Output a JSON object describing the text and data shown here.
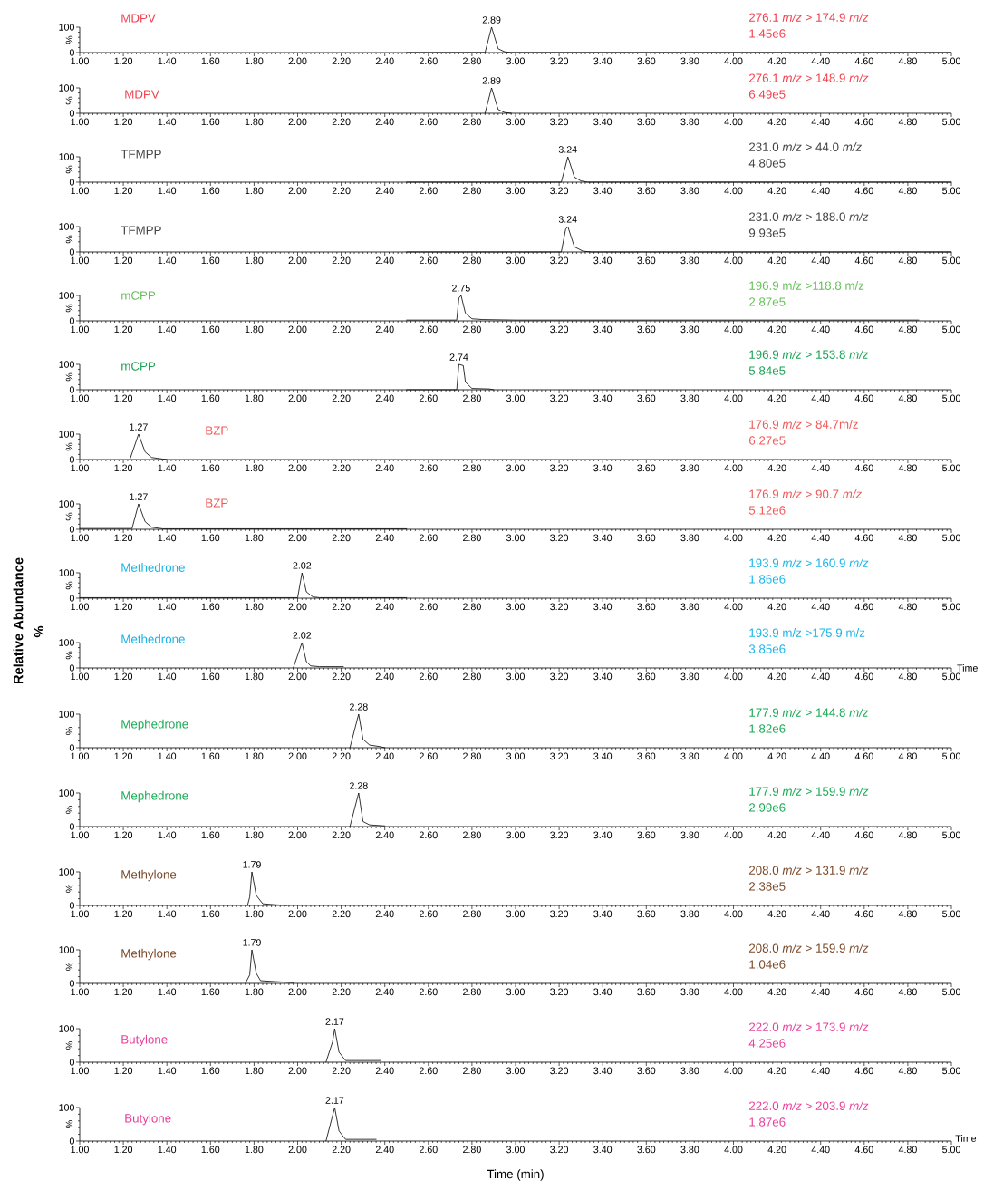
{
  "chart_data": [
    {
      "type": "line",
      "ylabel": "%",
      "xlim": [
        1,
        5
      ],
      "ylim": [
        0,
        100
      ],
      "xticks": [
        {
          "value": 1.0,
          "label": "1.00"
        },
        {
          "value": 1.2,
          "label": "1.20"
        },
        {
          "value": 1.4,
          "label": "1.40"
        },
        {
          "value": 1.6,
          "label": "1.60"
        },
        {
          "value": 1.8,
          "label": "1.80"
        },
        {
          "value": 2.0,
          "label": "2.00"
        },
        {
          "value": 2.2,
          "label": "2.20"
        },
        {
          "value": 2.4,
          "label": "2.40"
        },
        {
          "value": 2.6,
          "label": "2.60"
        },
        {
          "value": 2.8,
          "label": "2.80"
        },
        {
          "value": 3.0,
          "label": "3.00"
        },
        {
          "value": 3.2,
          "label": "3.20"
        },
        {
          "value": 3.4,
          "label": "3.40"
        },
        {
          "value": 3.6,
          "label": "3.60"
        },
        {
          "value": 3.8,
          "label": "3.80"
        },
        {
          "value": 4.0,
          "label": "4.00"
        },
        {
          "value": 4.2,
          "label": "4.20"
        },
        {
          "value": 4.4,
          "label": "4.40"
        },
        {
          "value": 4.6,
          "label": "4.60"
        },
        {
          "value": 4.8,
          "label": "4.80"
        },
        {
          "value": 5.0,
          "label": "5.00"
        }
      ],
      "yticks": [
        0,
        100
      ],
      "series": [
        {
          "color": "#000000",
          "x": [
            2.5,
            2.86,
            2.89,
            2.92,
            2.95,
            2.98,
            5.0
          ],
          "values": [
            0,
            0,
            100,
            15,
            3,
            0,
            0
          ]
        }
      ],
      "annotations": [
        "MDPV",
        "276.1 *m/z* > 174.9 *m/z*",
        "1.45e6",
        {
          "text": "2.89",
          "x": 2.89,
          "y": 100
        }
      ]
    },
    {
      "type": "line",
      "ylabel": "%",
      "xlim": [
        1,
        5
      ],
      "ylim": [
        0,
        100
      ],
      "xticks": [
        {
          "value": 1.0,
          "label": "1.00"
        },
        {
          "value": 1.2,
          "label": "1.20"
        },
        {
          "value": 1.4,
          "label": "1.40"
        },
        {
          "value": 1.6,
          "label": "1.60"
        },
        {
          "value": 1.8,
          "label": "1.80"
        },
        {
          "value": 2.0,
          "label": "2.00"
        },
        {
          "value": 2.2,
          "label": "2.20"
        },
        {
          "value": 2.4,
          "label": "2.40"
        },
        {
          "value": 2.6,
          "label": "2.60"
        },
        {
          "value": 2.8,
          "label": "2.80"
        },
        {
          "value": 3.0,
          "label": "3.00"
        },
        {
          "value": 3.2,
          "label": "3.20"
        },
        {
          "value": 3.4,
          "label": "3.40"
        },
        {
          "value": 3.6,
          "label": "3.60"
        },
        {
          "value": 3.8,
          "label": "3.80"
        },
        {
          "value": 4.0,
          "label": "4.00"
        },
        {
          "value": 4.2,
          "label": "4.20"
        },
        {
          "value": 4.4,
          "label": "4.40"
        },
        {
          "value": 4.6,
          "label": "4.60"
        },
        {
          "value": 4.8,
          "label": "4.80"
        },
        {
          "value": 5.0,
          "label": "5.00"
        }
      ],
      "yticks": [
        0,
        100
      ],
      "series": [
        {
          "color": "#000000",
          "x": [
            2.86,
            2.89,
            2.92,
            2.95,
            2.98
          ],
          "values": [
            0,
            100,
            15,
            3,
            0
          ]
        }
      ],
      "annotations": [
        "MDPV",
        "276.1 *m/z* > 148.9 *m/z*",
        "6.49e5",
        {
          "text": "2.89",
          "x": 2.89,
          "y": 100
        }
      ]
    },
    {
      "type": "line",
      "ylabel": "%",
      "xlim": [
        1,
        5
      ],
      "ylim": [
        0,
        100
      ],
      "xticks": [
        {
          "value": 1.0,
          "label": "1.00"
        },
        {
          "value": 1.2,
          "label": "1.20"
        },
        {
          "value": 1.4,
          "label": "1.40"
        },
        {
          "value": 1.6,
          "label": "1.60"
        },
        {
          "value": 1.8,
          "label": "1.80"
        },
        {
          "value": 2.0,
          "label": "2.00"
        },
        {
          "value": 2.2,
          "label": "2.20"
        },
        {
          "value": 2.4,
          "label": "2.40"
        },
        {
          "value": 2.6,
          "label": "2.60"
        },
        {
          "value": 2.8,
          "label": "2.80"
        },
        {
          "value": 3.0,
          "label": "3.00"
        },
        {
          "value": 3.2,
          "label": "3.20"
        },
        {
          "value": 3.4,
          "label": "3.40"
        },
        {
          "value": 3.6,
          "label": "3.60"
        },
        {
          "value": 3.8,
          "label": "3.80"
        },
        {
          "value": 4.0,
          "label": "4.00"
        },
        {
          "value": 4.2,
          "label": "4.20"
        },
        {
          "value": 4.4,
          "label": "4.40"
        },
        {
          "value": 4.6,
          "label": "4.60"
        },
        {
          "value": 4.8,
          "label": "4.80"
        },
        {
          "value": 5.0,
          "label": "5.00"
        }
      ],
      "yticks": [
        0,
        100
      ],
      "series": [
        {
          "color": "#000000",
          "x": [
            2.5,
            3.21,
            3.24,
            3.27,
            3.3,
            3.33,
            5.0
          ],
          "values": [
            0,
            0,
            100,
            20,
            5,
            0,
            0
          ]
        }
      ],
      "annotations": [
        "TFMPP",
        "231.0 *m/z* > 44.0 *m/z*",
        "4.80e5",
        {
          "text": "3.24",
          "x": 3.24,
          "y": 100
        }
      ]
    },
    {
      "type": "line",
      "ylabel": "%",
      "xlim": [
        1,
        5
      ],
      "ylim": [
        0,
        100
      ],
      "xticks": [
        {
          "value": 1.0,
          "label": "1.00"
        },
        {
          "value": 1.2,
          "label": "1.20"
        },
        {
          "value": 1.4,
          "label": "1.40"
        },
        {
          "value": 1.6,
          "label": "1.60"
        },
        {
          "value": 1.8,
          "label": "1.80"
        },
        {
          "value": 2.0,
          "label": "2.00"
        },
        {
          "value": 2.2,
          "label": "2.20"
        },
        {
          "value": 2.4,
          "label": "2.40"
        },
        {
          "value": 2.6,
          "label": "2.60"
        },
        {
          "value": 2.8,
          "label": "2.80"
        },
        {
          "value": 3.0,
          "label": "3.00"
        },
        {
          "value": 3.2,
          "label": "3.20"
        },
        {
          "value": 3.4,
          "label": "3.40"
        },
        {
          "value": 3.6,
          "label": "3.60"
        },
        {
          "value": 3.8,
          "label": "3.80"
        },
        {
          "value": 4.0,
          "label": "4.00"
        },
        {
          "value": 4.2,
          "label": "4.20"
        },
        {
          "value": 4.4,
          "label": "4.40"
        },
        {
          "value": 4.6,
          "label": "4.60"
        },
        {
          "value": 4.8,
          "label": "4.80"
        },
        {
          "value": 5.0,
          "label": "5.00"
        }
      ],
      "yticks": [
        0,
        100
      ],
      "series": [
        {
          "color": "#000000",
          "x": [
            2.5,
            3.21,
            3.23,
            3.24,
            3.27,
            3.31,
            3.35,
            5.0
          ],
          "values": [
            0,
            0,
            90,
            100,
            20,
            3,
            0,
            0
          ]
        }
      ],
      "annotations": [
        "TFMPP",
        "231.0 *m/z* > 188.0 *m/z*",
        "9.93e5",
        {
          "text": "3.24",
          "x": 3.24,
          "y": 100
        }
      ]
    },
    {
      "type": "line",
      "ylabel": "%",
      "xlim": [
        1,
        5
      ],
      "ylim": [
        0,
        100
      ],
      "xticks": [
        {
          "value": 1.0,
          "label": "1.00"
        },
        {
          "value": 1.2,
          "label": "1.20"
        },
        {
          "value": 1.4,
          "label": "1.40"
        },
        {
          "value": 1.6,
          "label": "1.60"
        },
        {
          "value": 1.8,
          "label": "1.80"
        },
        {
          "value": 2.0,
          "label": "2.00"
        },
        {
          "value": 2.2,
          "label": "2.20"
        },
        {
          "value": 2.4,
          "label": "2.40"
        },
        {
          "value": 2.6,
          "label": "2.60"
        },
        {
          "value": 2.8,
          "label": "2.80"
        },
        {
          "value": 3.0,
          "label": "3.00"
        },
        {
          "value": 3.2,
          "label": "3.20"
        },
        {
          "value": 3.4,
          "label": "3.40"
        },
        {
          "value": 3.6,
          "label": "3.60"
        },
        {
          "value": 3.8,
          "label": "3.80"
        },
        {
          "value": 4.0,
          "label": "4.00"
        },
        {
          "value": 4.2,
          "label": "4.20"
        },
        {
          "value": 4.4,
          "label": "4.40"
        },
        {
          "value": 4.6,
          "label": "4.60"
        },
        {
          "value": 4.8,
          "label": "4.80"
        },
        {
          "value": 5.0,
          "label": "5.00"
        }
      ],
      "yticks": [
        0,
        100
      ],
      "series": [
        {
          "color": "#000000",
          "x": [
            2.5,
            2.73,
            2.74,
            2.75,
            2.77,
            2.8,
            2.85,
            3.0,
            4.85
          ],
          "values": [
            3,
            3,
            90,
            100,
            30,
            8,
            5,
            3,
            3
          ]
        }
      ],
      "annotations": [
        "mCPP",
        "196.9 m/z >118.8 m/z",
        "2.87e5",
        {
          "text": "2.75",
          "x": 2.75,
          "y": 100
        }
      ]
    },
    {
      "type": "line",
      "ylabel": "%",
      "xlim": [
        1,
        5
      ],
      "ylim": [
        0,
        100
      ],
      "xticks": [
        {
          "value": 1.0,
          "label": "1.00"
        },
        {
          "value": 1.2,
          "label": "1.20"
        },
        {
          "value": 1.4,
          "label": "1.40"
        },
        {
          "value": 1.6,
          "label": "1.60"
        },
        {
          "value": 1.8,
          "label": "1.80"
        },
        {
          "value": 2.0,
          "label": "2.00"
        },
        {
          "value": 2.2,
          "label": "2.20"
        },
        {
          "value": 2.4,
          "label": "2.40"
        },
        {
          "value": 2.6,
          "label": "2.60"
        },
        {
          "value": 2.8,
          "label": "2.80"
        },
        {
          "value": 3.0,
          "label": "3.00"
        },
        {
          "value": 3.2,
          "label": "3.20"
        },
        {
          "value": 3.4,
          "label": "3.40"
        },
        {
          "value": 3.6,
          "label": "3.60"
        },
        {
          "value": 3.8,
          "label": "3.80"
        },
        {
          "value": 4.0,
          "label": "4.00"
        },
        {
          "value": 4.2,
          "label": "4.20"
        },
        {
          "value": 4.4,
          "label": "4.40"
        },
        {
          "value": 4.6,
          "label": "4.60"
        },
        {
          "value": 4.8,
          "label": "4.80"
        },
        {
          "value": 5.0,
          "label": "5.00"
        }
      ],
      "yticks": [
        0,
        100
      ],
      "series": [
        {
          "color": "#000000",
          "x": [
            2.5,
            2.73,
            2.74,
            2.76,
            2.77,
            2.8,
            2.88,
            2.9
          ],
          "values": [
            0,
            0,
            100,
            95,
            30,
            5,
            3,
            0
          ]
        }
      ],
      "annotations": [
        "mCPP",
        "196.9 *m/z* > 153.8 *m/z*",
        "5.84e5",
        {
          "text": "2.74",
          "x": 2.74,
          "y": 100
        }
      ]
    },
    {
      "type": "line",
      "ylabel": "%",
      "xlim": [
        1,
        5
      ],
      "ylim": [
        0,
        100
      ],
      "xticks": [
        {
          "value": 1.0,
          "label": "1.00"
        },
        {
          "value": 1.2,
          "label": "1.20"
        },
        {
          "value": 1.4,
          "label": "1.40"
        },
        {
          "value": 1.6,
          "label": "1.60"
        },
        {
          "value": 1.8,
          "label": "1.80"
        },
        {
          "value": 2.0,
          "label": "2.00"
        },
        {
          "value": 2.2,
          "label": "2.20"
        },
        {
          "value": 2.4,
          "label": "2.40"
        },
        {
          "value": 2.6,
          "label": "2.60"
        },
        {
          "value": 2.8,
          "label": "2.80"
        },
        {
          "value": 3.0,
          "label": "3.00"
        },
        {
          "value": 3.2,
          "label": "3.20"
        },
        {
          "value": 3.4,
          "label": "3.40"
        },
        {
          "value": 3.6,
          "label": "3.60"
        },
        {
          "value": 3.8,
          "label": "3.80"
        },
        {
          "value": 4.0,
          "label": "4.00"
        },
        {
          "value": 4.2,
          "label": "4.20"
        },
        {
          "value": 4.4,
          "label": "4.40"
        },
        {
          "value": 4.6,
          "label": "4.60"
        },
        {
          "value": 4.8,
          "label": "4.80"
        },
        {
          "value": 5.0,
          "label": "5.00"
        }
      ],
      "yticks": [
        0,
        100
      ],
      "series": [
        {
          "color": "#000000",
          "x": [
            1.23,
            1.27,
            1.3,
            1.33,
            1.38,
            1.4
          ],
          "values": [
            0,
            100,
            30,
            8,
            2,
            0
          ]
        }
      ],
      "annotations": [
        "BZP",
        "176.9 *m/z* > 84.7m/z",
        "6.27e5",
        {
          "text": "1.27",
          "x": 1.27,
          "y": 100
        }
      ]
    },
    {
      "type": "line",
      "ylabel": "%",
      "xlim": [
        1,
        5
      ],
      "ylim": [
        0,
        100
      ],
      "xticks": [
        {
          "value": 1.0,
          "label": "1.00"
        },
        {
          "value": 1.2,
          "label": "1.20"
        },
        {
          "value": 1.4,
          "label": "1.40"
        },
        {
          "value": 1.6,
          "label": "1.60"
        },
        {
          "value": 1.8,
          "label": "1.80"
        },
        {
          "value": 2.0,
          "label": "2.00"
        },
        {
          "value": 2.2,
          "label": "2.20"
        },
        {
          "value": 2.4,
          "label": "2.40"
        },
        {
          "value": 2.6,
          "label": "2.60"
        },
        {
          "value": 2.8,
          "label": "2.80"
        },
        {
          "value": 3.0,
          "label": "3.00"
        },
        {
          "value": 3.2,
          "label": "3.20"
        },
        {
          "value": 3.4,
          "label": "3.40"
        },
        {
          "value": 3.6,
          "label": "3.60"
        },
        {
          "value": 3.8,
          "label": "3.80"
        },
        {
          "value": 4.0,
          "label": "4.00"
        },
        {
          "value": 4.2,
          "label": "4.20"
        },
        {
          "value": 4.4,
          "label": "4.40"
        },
        {
          "value": 4.6,
          "label": "4.60"
        },
        {
          "value": 4.8,
          "label": "4.80"
        },
        {
          "value": 5.0,
          "label": "5.00"
        }
      ],
      "yticks": [
        0,
        100
      ],
      "series": [
        {
          "color": "#000000",
          "x": [
            1.0,
            1.24,
            1.27,
            1.3,
            1.33,
            1.38,
            2.5
          ],
          "values": [
            3,
            3,
            100,
            30,
            8,
            2,
            2
          ]
        }
      ],
      "annotations": [
        "BZP",
        "176.9 *m/z* > 90.7 *m/z*",
        "5.12e6",
        {
          "text": "1.27",
          "x": 1.27,
          "y": 100
        }
      ]
    },
    {
      "type": "line",
      "ylabel": "%",
      "xlim": [
        1,
        5
      ],
      "ylim": [
        0,
        100
      ],
      "xticks": [
        {
          "value": 1.0,
          "label": "1.00"
        },
        {
          "value": 1.2,
          "label": "1.20"
        },
        {
          "value": 1.4,
          "label": "1.40"
        },
        {
          "value": 1.6,
          "label": "1.60"
        },
        {
          "value": 1.8,
          "label": "1.80"
        },
        {
          "value": 2.0,
          "label": "2.00"
        },
        {
          "value": 2.2,
          "label": "2.20"
        },
        {
          "value": 2.4,
          "label": "2.40"
        },
        {
          "value": 2.6,
          "label": "2.60"
        },
        {
          "value": 2.8,
          "label": "2.80"
        },
        {
          "value": 3.0,
          "label": "3.00"
        },
        {
          "value": 3.2,
          "label": "3.20"
        },
        {
          "value": 3.4,
          "label": "3.40"
        },
        {
          "value": 3.6,
          "label": "3.60"
        },
        {
          "value": 3.8,
          "label": "3.80"
        },
        {
          "value": 4.0,
          "label": "4.00"
        },
        {
          "value": 4.2,
          "label": "4.20"
        },
        {
          "value": 4.4,
          "label": "4.40"
        },
        {
          "value": 4.6,
          "label": "4.60"
        },
        {
          "value": 4.8,
          "label": "4.80"
        },
        {
          "value": 5.0,
          "label": "5.00"
        }
      ],
      "yticks": [
        0,
        100
      ],
      "series": [
        {
          "color": "#000000",
          "x": [
            1.0,
            2.0,
            2.02,
            2.04,
            2.07,
            2.1,
            2.5
          ],
          "values": [
            2,
            2,
            100,
            25,
            5,
            2,
            2
          ]
        }
      ],
      "annotations": [
        "Methedrone",
        "193.9 *m/z* > 160.9 *m/z*",
        "1.86e6",
        {
          "text": "2.02",
          "x": 2.02,
          "y": 100
        },
        "Relative Abundance",
        "%"
      ]
    },
    {
      "type": "line",
      "ylabel": "%",
      "xlabel": "Time",
      "xlim": [
        1,
        5
      ],
      "ylim": [
        0,
        100
      ],
      "xticks": [
        {
          "value": 1.0,
          "label": "1.00"
        },
        {
          "value": 1.2,
          "label": "1.20"
        },
        {
          "value": 1.4,
          "label": "1.40"
        },
        {
          "value": 1.6,
          "label": "1.60"
        },
        {
          "value": 1.8,
          "label": "1.80"
        },
        {
          "value": 2.0,
          "label": "2.00"
        },
        {
          "value": 2.2,
          "label": "2.20"
        },
        {
          "value": 2.4,
          "label": "2.40"
        },
        {
          "value": 2.6,
          "label": "2.60"
        },
        {
          "value": 2.8,
          "label": "2.80"
        },
        {
          "value": 3.0,
          "label": "3.00"
        },
        {
          "value": 3.2,
          "label": "3.20"
        },
        {
          "value": 3.4,
          "label": "3.40"
        },
        {
          "value": 3.6,
          "label": "3.60"
        },
        {
          "value": 3.8,
          "label": "3.80"
        },
        {
          "value": 4.0,
          "label": "4.00"
        },
        {
          "value": 4.2,
          "label": "4.20"
        },
        {
          "value": 4.4,
          "label": "4.40"
        },
        {
          "value": 4.6,
          "label": "4.60"
        },
        {
          "value": 4.8,
          "label": "4.80"
        },
        {
          "value": 5.0,
          "label": "5.00"
        }
      ],
      "yticks": [
        0,
        100
      ],
      "series": [
        {
          "color": "#000000",
          "x": [
            1.98,
            2.02,
            2.04,
            2.06,
            2.1,
            2.21
          ],
          "values": [
            0,
            100,
            25,
            8,
            5,
            5
          ]
        }
      ],
      "annotations": [
        "Methedrone",
        "193.9 m/z >175.9 m/z",
        "3.85e6",
        {
          "text": "2.02",
          "x": 2.02,
          "y": 100
        }
      ]
    },
    {
      "type": "line",
      "ylabel": "%",
      "xlim": [
        1,
        5
      ],
      "ylim": [
        0,
        100
      ],
      "xticks": [
        {
          "value": 1.0,
          "label": "1.00"
        },
        {
          "value": 1.2,
          "label": "1.20"
        },
        {
          "value": 1.4,
          "label": "1.40"
        },
        {
          "value": 1.6,
          "label": "1.60"
        },
        {
          "value": 1.8,
          "label": "1.80"
        },
        {
          "value": 2.0,
          "label": "2.00"
        },
        {
          "value": 2.2,
          "label": "2.20"
        },
        {
          "value": 2.4,
          "label": "2.40"
        },
        {
          "value": 2.6,
          "label": "2.60"
        },
        {
          "value": 2.8,
          "label": "2.80"
        },
        {
          "value": 3.0,
          "label": "3.00"
        },
        {
          "value": 3.2,
          "label": "3.20"
        },
        {
          "value": 3.4,
          "label": "3.40"
        },
        {
          "value": 3.6,
          "label": "3.60"
        },
        {
          "value": 3.8,
          "label": "3.80"
        },
        {
          "value": 4.0,
          "label": "4.00"
        },
        {
          "value": 4.2,
          "label": "4.20"
        },
        {
          "value": 4.4,
          "label": "4.40"
        },
        {
          "value": 4.6,
          "label": "4.60"
        },
        {
          "value": 4.8,
          "label": "4.80"
        },
        {
          "value": 5.0,
          "label": "5.00"
        }
      ],
      "yticks": [
        0,
        100
      ],
      "series": [
        {
          "color": "#000000",
          "x": [
            2.24,
            2.28,
            2.3,
            2.33,
            2.38,
            2.4
          ],
          "values": [
            0,
            100,
            25,
            8,
            3,
            0
          ]
        }
      ],
      "annotations": [
        "Mephedrone",
        "177.9 *m/z* > 144.8 *m/z*",
        "1.82e6",
        {
          "text": "2.28",
          "x": 2.28,
          "y": 100
        }
      ]
    },
    {
      "type": "line",
      "ylabel": "%",
      "xlim": [
        1,
        5
      ],
      "ylim": [
        0,
        100
      ],
      "xticks": [
        {
          "value": 1.0,
          "label": "1.00"
        },
        {
          "value": 1.2,
          "label": "1.20"
        },
        {
          "value": 1.4,
          "label": "1.40"
        },
        {
          "value": 1.6,
          "label": "1.60"
        },
        {
          "value": 1.8,
          "label": "1.80"
        },
        {
          "value": 2.0,
          "label": "2.00"
        },
        {
          "value": 2.2,
          "label": "2.20"
        },
        {
          "value": 2.4,
          "label": "2.40"
        },
        {
          "value": 2.6,
          "label": "2.60"
        },
        {
          "value": 2.8,
          "label": "2.80"
        },
        {
          "value": 3.0,
          "label": "3.00"
        },
        {
          "value": 3.2,
          "label": "3.20"
        },
        {
          "value": 3.4,
          "label": "3.40"
        },
        {
          "value": 3.6,
          "label": "3.60"
        },
        {
          "value": 3.8,
          "label": "3.80"
        },
        {
          "value": 4.0,
          "label": "4.00"
        },
        {
          "value": 4.2,
          "label": "4.20"
        },
        {
          "value": 4.4,
          "label": "4.40"
        },
        {
          "value": 4.6,
          "label": "4.60"
        },
        {
          "value": 4.8,
          "label": "4.80"
        },
        {
          "value": 5.0,
          "label": "5.00"
        }
      ],
      "yticks": [
        0,
        100
      ],
      "series": [
        {
          "color": "#000000",
          "x": [
            2.24,
            2.28,
            2.3,
            2.33,
            2.4
          ],
          "values": [
            0,
            100,
            15,
            5,
            2
          ]
        }
      ],
      "annotations": [
        "Mephedrone",
        "177.9 *m/z* > 159.9 *m/z*",
        "2.99e6",
        {
          "text": "2.28",
          "x": 2.28,
          "y": 100
        }
      ]
    },
    {
      "type": "line",
      "ylabel": "%",
      "xlim": [
        1,
        5
      ],
      "ylim": [
        0,
        100
      ],
      "xticks": [
        {
          "value": 1.0,
          "label": "1.00"
        },
        {
          "value": 1.2,
          "label": "1.20"
        },
        {
          "value": 1.4,
          "label": "1.40"
        },
        {
          "value": 1.6,
          "label": "1.60"
        },
        {
          "value": 1.8,
          "label": "1.80"
        },
        {
          "value": 2.0,
          "label": "2.00"
        },
        {
          "value": 2.2,
          "label": "2.20"
        },
        {
          "value": 2.4,
          "label": "2.40"
        },
        {
          "value": 2.6,
          "label": "2.60"
        },
        {
          "value": 2.8,
          "label": "2.80"
        },
        {
          "value": 3.0,
          "label": "3.00"
        },
        {
          "value": 3.2,
          "label": "3.20"
        },
        {
          "value": 3.4,
          "label": "3.40"
        },
        {
          "value": 3.6,
          "label": "3.60"
        },
        {
          "value": 3.8,
          "label": "3.80"
        },
        {
          "value": 4.0,
          "label": "4.00"
        },
        {
          "value": 4.2,
          "label": "4.20"
        },
        {
          "value": 4.4,
          "label": "4.40"
        },
        {
          "value": 4.6,
          "label": "4.60"
        },
        {
          "value": 4.8,
          "label": "4.80"
        },
        {
          "value": 5.0,
          "label": "5.00"
        }
      ],
      "yticks": [
        0,
        100
      ],
      "series": [
        {
          "color": "#000000",
          "x": [
            1.77,
            1.78,
            1.79,
            1.81,
            1.84,
            1.9,
            1.95
          ],
          "values": [
            0,
            25,
            100,
            30,
            5,
            2,
            0
          ]
        }
      ],
      "annotations": [
        "Methylone",
        "208.0 *m/z* > 131.9 *m/z*",
        "2.38e5",
        {
          "text": "1.79",
          "x": 1.79,
          "y": 100
        }
      ]
    },
    {
      "type": "line",
      "ylabel": "%",
      "xlim": [
        1,
        5
      ],
      "ylim": [
        0,
        100
      ],
      "xticks": [
        {
          "value": 1.0,
          "label": "1.00"
        },
        {
          "value": 1.2,
          "label": "1.20"
        },
        {
          "value": 1.4,
          "label": "1.40"
        },
        {
          "value": 1.6,
          "label": "1.60"
        },
        {
          "value": 1.8,
          "label": "1.80"
        },
        {
          "value": 2.0,
          "label": "2.00"
        },
        {
          "value": 2.2,
          "label": "2.20"
        },
        {
          "value": 2.4,
          "label": "2.40"
        },
        {
          "value": 2.6,
          "label": "2.60"
        },
        {
          "value": 2.8,
          "label": "2.80"
        },
        {
          "value": 3.0,
          "label": "3.00"
        },
        {
          "value": 3.2,
          "label": "3.20"
        },
        {
          "value": 3.4,
          "label": "3.40"
        },
        {
          "value": 3.6,
          "label": "3.60"
        },
        {
          "value": 3.8,
          "label": "3.80"
        },
        {
          "value": 4.0,
          "label": "4.00"
        },
        {
          "value": 4.2,
          "label": "4.20"
        },
        {
          "value": 4.4,
          "label": "4.40"
        },
        {
          "value": 4.6,
          "label": "4.60"
        },
        {
          "value": 4.8,
          "label": "4.80"
        },
        {
          "value": 5.0,
          "label": "5.00"
        }
      ],
      "yticks": [
        0,
        100
      ],
      "series": [
        {
          "color": "#000000",
          "x": [
            1.76,
            1.78,
            1.79,
            1.81,
            1.83,
            1.98
          ],
          "values": [
            0,
            25,
            100,
            30,
            8,
            2
          ]
        }
      ],
      "annotations": [
        "Methylone",
        "208.0 *m/z* > 159.9 *m/z*",
        "1.04e6",
        {
          "text": "1.79",
          "x": 1.79,
          "y": 100
        }
      ]
    },
    {
      "type": "line",
      "ylabel": "%",
      "xlim": [
        1,
        5
      ],
      "ylim": [
        0,
        100
      ],
      "xticks": [
        {
          "value": 1.0,
          "label": "1.00"
        },
        {
          "value": 1.2,
          "label": "1.20"
        },
        {
          "value": 1.4,
          "label": "1.40"
        },
        {
          "value": 1.6,
          "label": "1.60"
        },
        {
          "value": 1.8,
          "label": "1.80"
        },
        {
          "value": 2.0,
          "label": "2.00"
        },
        {
          "value": 2.2,
          "label": "2.20"
        },
        {
          "value": 2.4,
          "label": "2.40"
        },
        {
          "value": 2.6,
          "label": "2.60"
        },
        {
          "value": 2.8,
          "label": "2.80"
        },
        {
          "value": 3.0,
          "label": "3.00"
        },
        {
          "value": 3.2,
          "label": "3.20"
        },
        {
          "value": 3.4,
          "label": "3.40"
        },
        {
          "value": 3.6,
          "label": "3.60"
        },
        {
          "value": 3.8,
          "label": "3.80"
        },
        {
          "value": 4.0,
          "label": "4.00"
        },
        {
          "value": 4.2,
          "label": "4.20"
        },
        {
          "value": 4.4,
          "label": "4.40"
        },
        {
          "value": 4.6,
          "label": "4.60"
        },
        {
          "value": 4.8,
          "label": "4.80"
        },
        {
          "value": 5.0,
          "label": "5.00"
        }
      ],
      "yticks": [
        0,
        100
      ],
      "series": [
        {
          "color": "#000000",
          "x": [
            2.13,
            2.16,
            2.17,
            2.19,
            2.22,
            2.38
          ],
          "values": [
            0,
            60,
            100,
            30,
            5,
            5
          ]
        }
      ],
      "annotations": [
        "Butylone",
        "222.0 *m/z* > 173.9 *m/z*",
        "4.25e6",
        {
          "text": "2.17",
          "x": 2.17,
          "y": 100
        }
      ]
    },
    {
      "type": "line",
      "ylabel": "%",
      "xlabel": "Time (min)",
      "xlim": [
        1,
        5
      ],
      "ylim": [
        0,
        100
      ],
      "xticks": [
        {
          "value": 1.0,
          "label": "1.00"
        },
        {
          "value": 1.2,
          "label": "1.20"
        },
        {
          "value": 1.4,
          "label": "1.40"
        },
        {
          "value": 1.6,
          "label": "1.60"
        },
        {
          "value": 1.8,
          "label": "1.80"
        },
        {
          "value": 2.0,
          "label": "2.00"
        },
        {
          "value": 2.2,
          "label": "2.20"
        },
        {
          "value": 2.4,
          "label": "2.40"
        },
        {
          "value": 2.6,
          "label": "2.60"
        },
        {
          "value": 2.8,
          "label": "2.80"
        },
        {
          "value": 3.0,
          "label": "3.00"
        },
        {
          "value": 3.2,
          "label": "3.20"
        },
        {
          "value": 3.4,
          "label": "3.40"
        },
        {
          "value": 3.6,
          "label": "3.60"
        },
        {
          "value": 3.8,
          "label": "3.80"
        },
        {
          "value": 4.0,
          "label": "4.00"
        },
        {
          "value": 4.2,
          "label": "4.20"
        },
        {
          "value": 4.4,
          "label": "4.40"
        },
        {
          "value": 4.6,
          "label": "4.60"
        },
        {
          "value": 4.8,
          "label": "4.80"
        },
        {
          "value": 5.0,
          "label": "5.00"
        }
      ],
      "yticks": [
        0,
        100
      ],
      "series": [
        {
          "color": "#000000",
          "x": [
            2.13,
            2.17,
            2.19,
            2.22,
            2.36
          ],
          "values": [
            0,
            100,
            30,
            5,
            5
          ]
        }
      ],
      "annotations": [
        "Butylone",
        "222.0 *m/z* > 203.9 *m/z*",
        "1.87e6",
        {
          "text": "2.17",
          "x": 2.17,
          "y": 100
        },
        "Time"
      ]
    }
  ]
}
